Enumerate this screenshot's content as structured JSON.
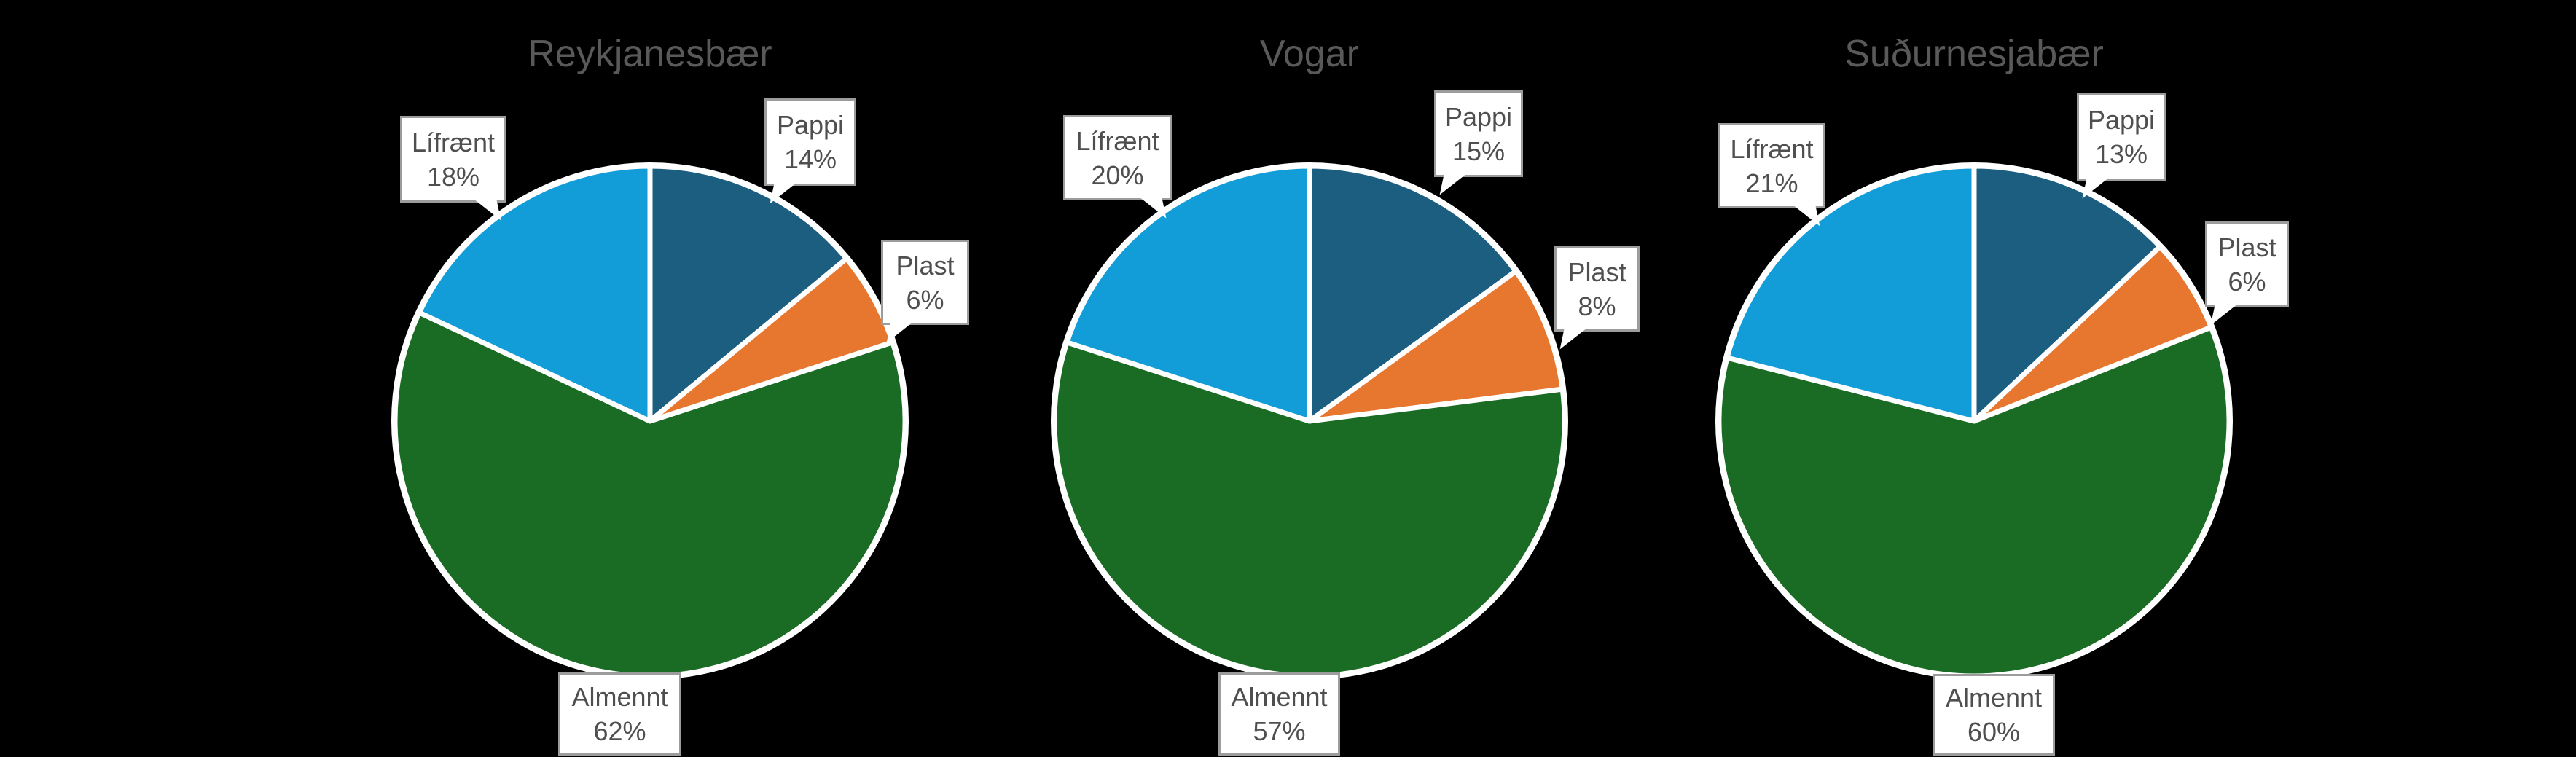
{
  "styles": {
    "background": "#000000",
    "title_color": "#595959",
    "callout_bg": "#FFFFFF",
    "callout_border": "#9C9C9C",
    "callout_text_color": "#4F4F4F",
    "slice_separator": "#FFFFFF"
  },
  "chart_data": [
    {
      "type": "pie",
      "title": "Reykjanesbær",
      "start_angle_deg": 0,
      "direction": "clockwise",
      "legend_position": "callouts",
      "slices": [
        {
          "label": "Pappi",
          "value": 14,
          "pct_label": "14%",
          "color": "#1B5E80"
        },
        {
          "label": "Plast",
          "value": 6,
          "pct_label": "6%",
          "color": "#E7772F"
        },
        {
          "label": "Almennt",
          "value": 62,
          "pct_label": "62%",
          "color": "#1A6B24"
        },
        {
          "label": "Lífrænt",
          "value": 18,
          "pct_label": "18%",
          "color": "#129DD8"
        }
      ]
    },
    {
      "type": "pie",
      "title": "Vogar",
      "start_angle_deg": 0,
      "direction": "clockwise",
      "legend_position": "callouts",
      "slices": [
        {
          "label": "Pappi",
          "value": 15,
          "pct_label": "15%",
          "color": "#1B5E80"
        },
        {
          "label": "Plast",
          "value": 8,
          "pct_label": "8%",
          "color": "#E7772F"
        },
        {
          "label": "Almennt",
          "value": 57,
          "pct_label": "57%",
          "color": "#1A6B24"
        },
        {
          "label": "Lífrænt",
          "value": 20,
          "pct_label": "20%",
          "color": "#129DD8"
        }
      ]
    },
    {
      "type": "pie",
      "title": "Suðurnesjabær",
      "start_angle_deg": 0,
      "direction": "clockwise",
      "legend_position": "callouts",
      "slices": [
        {
          "label": "Pappi",
          "value": 13,
          "pct_label": "13%",
          "color": "#1B5E80"
        },
        {
          "label": "Plast",
          "value": 6,
          "pct_label": "6%",
          "color": "#E7772F"
        },
        {
          "label": "Almennt",
          "value": 60,
          "pct_label": "60%",
          "color": "#1A6B24"
        },
        {
          "label": "Lífrænt",
          "value": 21,
          "pct_label": "21%",
          "color": "#129DD8"
        }
      ]
    }
  ]
}
